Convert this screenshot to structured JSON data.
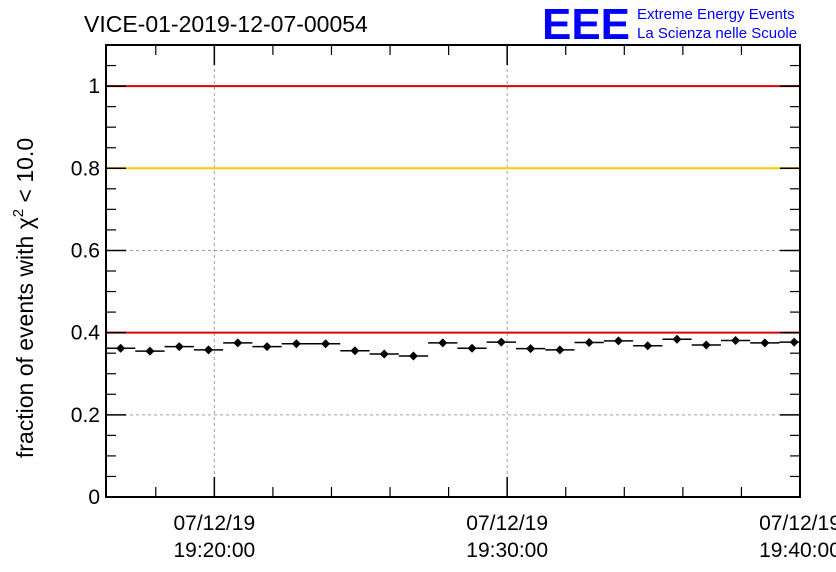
{
  "chart_data": {
    "type": "scatter",
    "title": "VICE-01-2019-12-07-00054",
    "ylabel": "fraction of events with χ² < 10.0",
    "ylabel_parts": {
      "prefix": "fraction of events with ",
      "symbol": "χ",
      "superscript": "2",
      "suffix": " < 10.0"
    },
    "ylim": [
      0,
      1.1
    ],
    "y_ticks": [
      {
        "value": 0,
        "label": "0"
      },
      {
        "value": 0.2,
        "label": "0.2"
      },
      {
        "value": 0.4,
        "label": "0.4"
      },
      {
        "value": 0.6,
        "label": "0.6"
      },
      {
        "value": 0.8,
        "label": "0.8"
      },
      {
        "value": 1,
        "label": "1"
      }
    ],
    "xlim_minutes": [
      16.3,
      40.0
    ],
    "x_ticks": [
      {
        "value": 20,
        "date": "07/12/19",
        "time": "19:20:00"
      },
      {
        "value": 30,
        "date": "07/12/19",
        "time": "19:30:00"
      },
      {
        "value": 40,
        "date": "07/12/19",
        "time": "19:40:00"
      }
    ],
    "grid": true,
    "reference_lines": [
      {
        "y": 1.0,
        "color": "#e00000"
      },
      {
        "y": 0.8,
        "color": "#ffc800"
      },
      {
        "y": 0.4,
        "color": "#e00000"
      }
    ],
    "bin_width_minutes": 1.0,
    "x": [
      16.8,
      17.8,
      18.8,
      19.8,
      20.8,
      21.8,
      22.8,
      23.8,
      24.8,
      25.8,
      26.8,
      27.8,
      28.8,
      29.8,
      30.8,
      31.8,
      32.8,
      33.8,
      34.8,
      35.8,
      36.8,
      37.8,
      38.8,
      39.8
    ],
    "y": [
      0.362,
      0.355,
      0.366,
      0.358,
      0.375,
      0.366,
      0.373,
      0.373,
      0.356,
      0.348,
      0.343,
      0.375,
      0.362,
      0.377,
      0.361,
      0.358,
      0.376,
      0.38,
      0.368,
      0.384,
      0.37,
      0.381,
      0.375,
      0.377
    ],
    "marker_color": "#000000"
  },
  "logo": {
    "mark": "EEE",
    "line1": "Extreme Energy Events",
    "line2": "La Scienza nelle Scuole",
    "color": "#0000ff"
  }
}
